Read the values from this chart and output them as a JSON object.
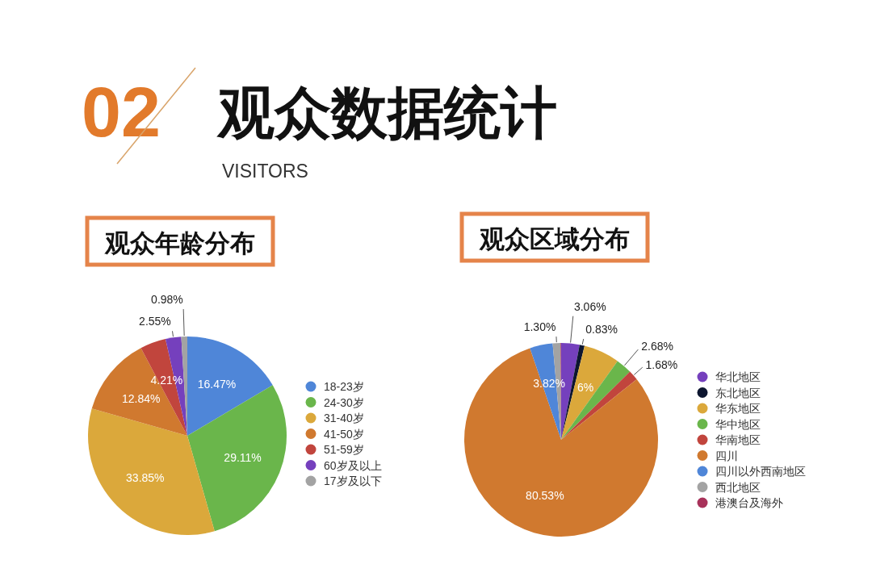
{
  "chart_data": [
    {
      "type": "other",
      "title": "观众数据统计",
      "subtitle": "VISITORS",
      "annotations": [
        "02"
      ]
    },
    {
      "type": "pie",
      "title": "观众年龄分布",
      "categories": [
        "18-23岁",
        "24-30岁",
        "31-40岁",
        "41-50岁",
        "51-59岁",
        "60岁及以上",
        "17岁及以下"
      ],
      "values": [
        16.47,
        29.11,
        33.85,
        12.84,
        4.21,
        2.55,
        0.98
      ],
      "value_labels": [
        "16.47%",
        "29.11%",
        "33.85%",
        "12.84%",
        "4.21%",
        "2.55%",
        "0.98%"
      ],
      "colors": [
        "#4f86d8",
        "#6ab64b",
        "#dba83b",
        "#d0792f",
        "#c1453d",
        "#7540bd",
        "#a3a3a3"
      ],
      "legend": "right"
    },
    {
      "type": "pie",
      "title": "观众区域分布",
      "categories": [
        "华北地区",
        "东北地区",
        "华东地区",
        "华中地区",
        "华南地区",
        "四川",
        "四川以外西南地区",
        "西北地区",
        "港澳台及海外"
      ],
      "values": [
        3.06,
        0.83,
        6,
        2.68,
        1.68,
        80.53,
        3.82,
        1.3,
        0.1
      ],
      "value_labels": [
        "3.06%",
        "0.83%",
        "6%",
        "2.68%",
        "1.68%",
        "80.53%",
        "3.82%",
        "1.30%",
        null
      ],
      "colors": [
        "#7540bd",
        "#0d1630",
        "#dba83b",
        "#6ab64b",
        "#c1453d",
        "#d0792f",
        "#4f86d8",
        "#a3a3a3",
        "#a8325a"
      ],
      "legend": "right"
    }
  ]
}
